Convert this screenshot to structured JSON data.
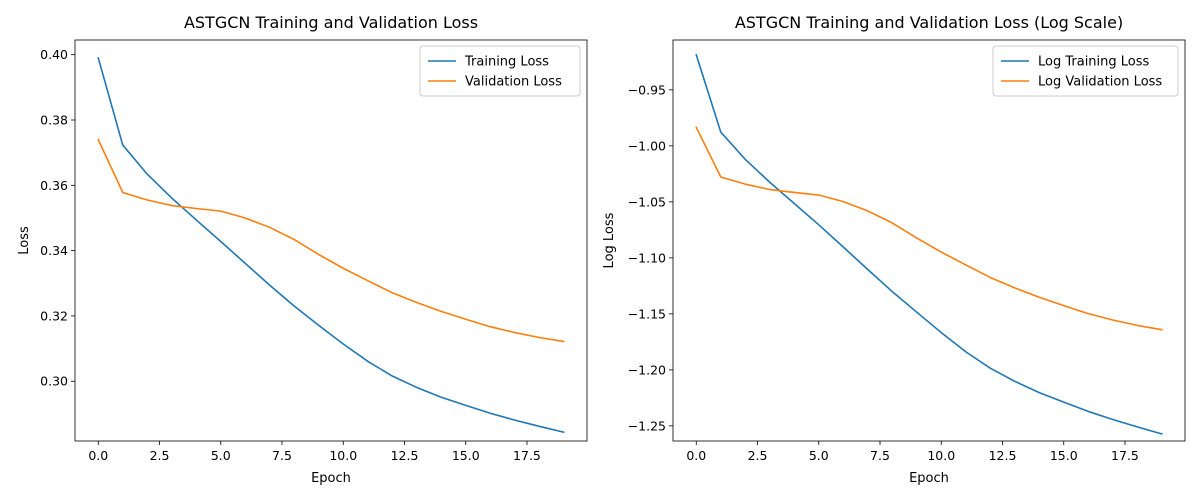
{
  "chart_data": [
    {
      "type": "line",
      "title": "ASTGCN Training and Validation Loss",
      "xlabel": "Epoch",
      "ylabel": "Loss",
      "xlim": [
        -0.95,
        19.95
      ],
      "ylim": [
        0.2817,
        0.4045
      ],
      "xticks": [
        0.0,
        2.5,
        5.0,
        7.5,
        10.0,
        12.5,
        15.0,
        17.5
      ],
      "xtick_labels": [
        "0.0",
        "2.5",
        "5.0",
        "7.5",
        "10.0",
        "12.5",
        "15.0",
        "17.5"
      ],
      "yticks": [
        0.3,
        0.32,
        0.34,
        0.36,
        0.38,
        0.4
      ],
      "ytick_labels": [
        "0.30",
        "0.32",
        "0.34",
        "0.36",
        "0.38",
        "0.40"
      ],
      "legend": "top-right",
      "grid": false,
      "x": [
        0,
        1,
        2,
        3,
        4,
        5,
        6,
        7,
        8,
        9,
        10,
        11,
        12,
        13,
        14,
        15,
        16,
        17,
        18,
        19
      ],
      "series": [
        {
          "name": "Training Loss",
          "color": "#1f77b4",
          "values": [
            0.399,
            0.3723,
            0.3634,
            0.3561,
            0.3494,
            0.3428,
            0.3361,
            0.3294,
            0.323,
            0.3171,
            0.3114,
            0.3061,
            0.3016,
            0.2981,
            0.2951,
            0.2926,
            0.2902,
            0.2881,
            0.2862,
            0.2844
          ]
        },
        {
          "name": "Validation Loss",
          "color": "#ff7f0e",
          "values": [
            0.374,
            0.3578,
            0.3555,
            0.3538,
            0.3529,
            0.3521,
            0.35,
            0.3471,
            0.3434,
            0.3388,
            0.3346,
            0.3308,
            0.3271,
            0.3241,
            0.3214,
            0.319,
            0.3167,
            0.3149,
            0.3134,
            0.3122
          ]
        }
      ]
    },
    {
      "type": "line",
      "title": "ASTGCN Training and Validation Loss (Log Scale)",
      "xlabel": "Epoch",
      "ylabel": "Log Loss",
      "xlim": [
        -0.95,
        19.95
      ],
      "ylim": [
        -1.2635,
        -0.9055
      ],
      "xticks": [
        0.0,
        2.5,
        5.0,
        7.5,
        10.0,
        12.5,
        15.0,
        17.5
      ],
      "xtick_labels": [
        "0.0",
        "2.5",
        "5.0",
        "7.5",
        "10.0",
        "12.5",
        "15.0",
        "17.5"
      ],
      "yticks": [
        -1.25,
        -1.2,
        -1.15,
        -1.1,
        -1.05,
        -1.0,
        -0.95
      ],
      "ytick_labels": [
        "−1.25",
        "−1.20",
        "−1.15",
        "−1.10",
        "−1.05",
        "−1.00",
        "−0.95"
      ],
      "legend": "top-right",
      "grid": false,
      "x": [
        0,
        1,
        2,
        3,
        4,
        5,
        6,
        7,
        8,
        9,
        10,
        11,
        12,
        13,
        14,
        15,
        16,
        17,
        18,
        19
      ],
      "series": [
        {
          "name": "Log Training Loss",
          "color": "#1f77b4",
          "values": [
            -0.9188,
            -0.9877,
            -1.0121,
            -1.0325,
            -1.0515,
            -1.0705,
            -1.0903,
            -1.1104,
            -1.1301,
            -1.1485,
            -1.1667,
            -1.1838,
            -1.1985,
            -1.2102,
            -1.2203,
            -1.2288,
            -1.2371,
            -1.2443,
            -1.2509,
            -1.2572
          ]
        },
        {
          "name": "Log Validation Loss",
          "color": "#ff7f0e",
          "values": [
            -0.9835,
            -1.0278,
            -1.0342,
            -1.039,
            -1.0416,
            -1.0439,
            -1.0498,
            -1.0581,
            -1.0688,
            -1.0823,
            -1.0948,
            -1.1063,
            -1.1175,
            -1.1268,
            -1.1352,
            -1.1426,
            -1.1498,
            -1.1555,
            -1.1603,
            -1.1641
          ]
        }
      ]
    }
  ]
}
